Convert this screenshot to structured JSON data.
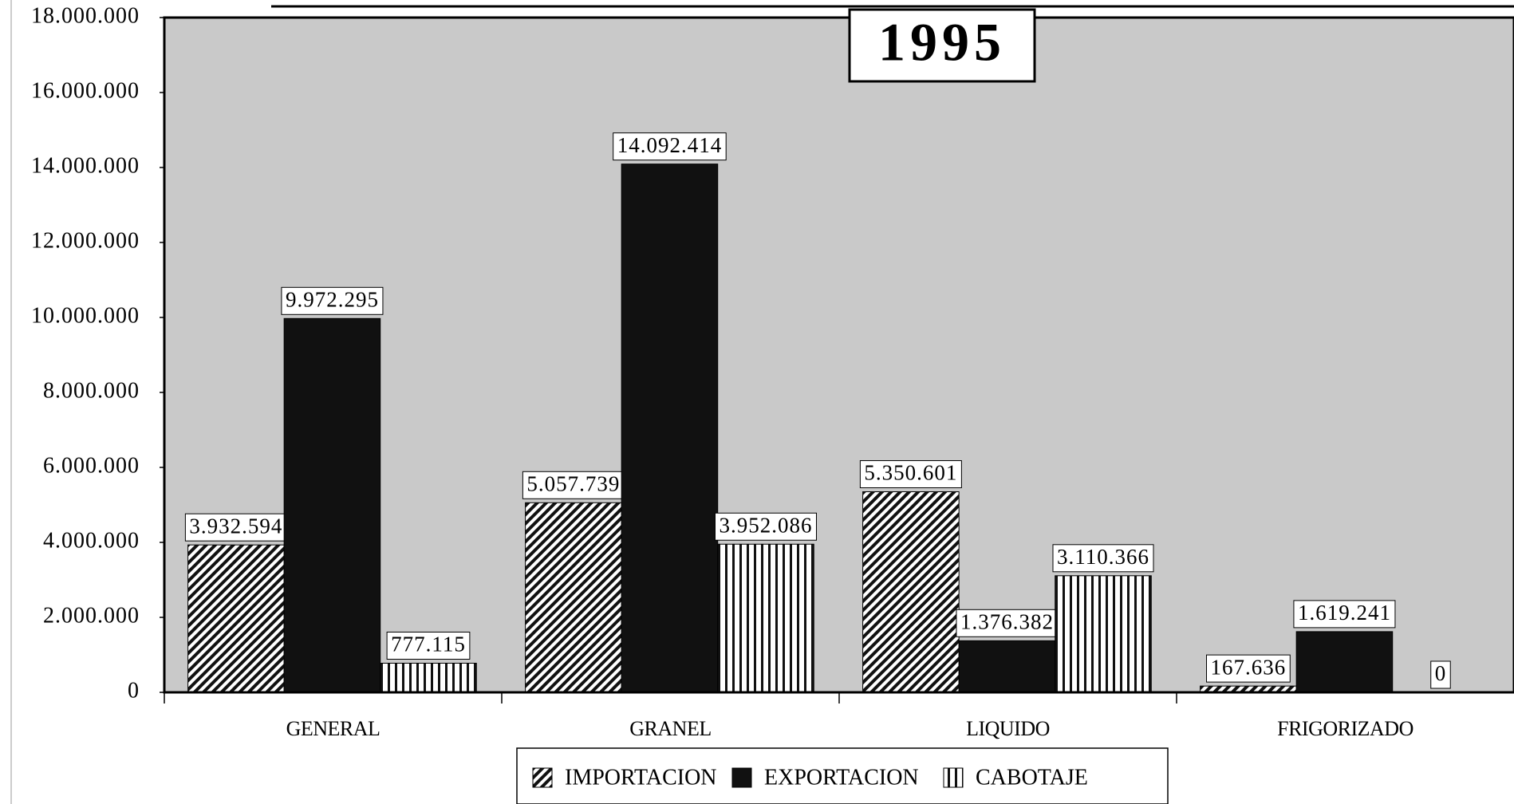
{
  "chart_data": {
    "type": "bar",
    "title": "1995",
    "categories": [
      "GENERAL",
      "GRANEL",
      "LIQUIDO",
      "FRIGORIZADO"
    ],
    "series": [
      {
        "name": "IMPORTACION",
        "color": "#111111",
        "pattern": "diagonal",
        "values": [
          3932594,
          5057739,
          5350601,
          167636
        ],
        "value_labels": [
          "3.932.594",
          "5.057.739",
          "5.350.601",
          "167.636"
        ]
      },
      {
        "name": "EXPORTACION",
        "color": "#111111",
        "pattern": "solid",
        "values": [
          9972295,
          14092414,
          1376382,
          1619241
        ],
        "value_labels": [
          "9.972.295",
          "14.092.414",
          "1.376.382",
          "1.619.241"
        ]
      },
      {
        "name": "CABOTAJE",
        "color": "#111111",
        "pattern": "vertical",
        "values": [
          777115,
          3952086,
          3110366,
          0
        ],
        "value_labels": [
          "777.115",
          "3.952.086",
          "3.110.366",
          "0"
        ]
      }
    ],
    "ylim": [
      0,
      18000000
    ],
    "yticks": [
      0,
      {
        "value": 2000000,
        "label": "2.000.000"
      },
      {
        "value": 4000000,
        "label": "4.000.000"
      },
      {
        "value": 6000000,
        "label": "6.000.000"
      },
      {
        "value": 8000000,
        "label": "8.000.000"
      },
      {
        "value": 10000000,
        "label": "10.000.000"
      },
      {
        "value": 12000000,
        "label": "12.000.000"
      },
      {
        "value": 14000000,
        "label": "14.000.000"
      },
      {
        "value": 16000000,
        "label": "16.000.000"
      },
      {
        "value": 18000000,
        "label": "18.000.000"
      }
    ],
    "grid": false,
    "legend": "bottom"
  }
}
